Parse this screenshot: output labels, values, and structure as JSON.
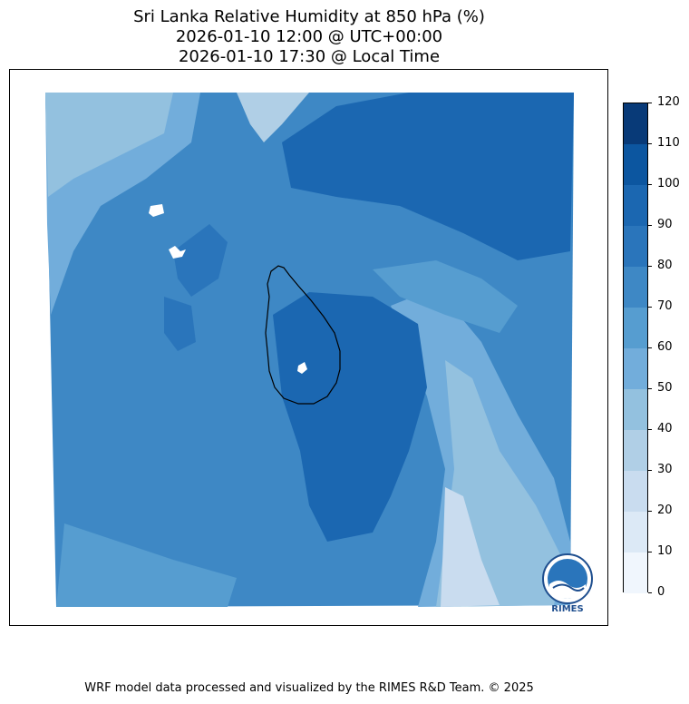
{
  "title": {
    "line1": "Sri Lanka Relative Humidity at 850 hPa (%)",
    "line2": "2026-01-10 12:00 @ UTC+00:00",
    "line3": "2026-01-10 17:30 @ Local Time"
  },
  "colorbar": {
    "ticks": [
      "0",
      "10",
      "20",
      "30",
      "40",
      "50",
      "60",
      "70",
      "80",
      "90",
      "100",
      "110",
      "120"
    ],
    "colors": [
      "#f0f6fd",
      "#dce9f6",
      "#c9dcef",
      "#b0cfe6",
      "#93c1df",
      "#72addb",
      "#569dd0",
      "#3e88c5",
      "#2a75bb",
      "#1b67b1",
      "#0c56a0",
      "#083a78"
    ]
  },
  "logo": {
    "text": "RIMES"
  },
  "footer": "WRF model data processed and visualized by the RIMES R&D Team. © 2025"
}
